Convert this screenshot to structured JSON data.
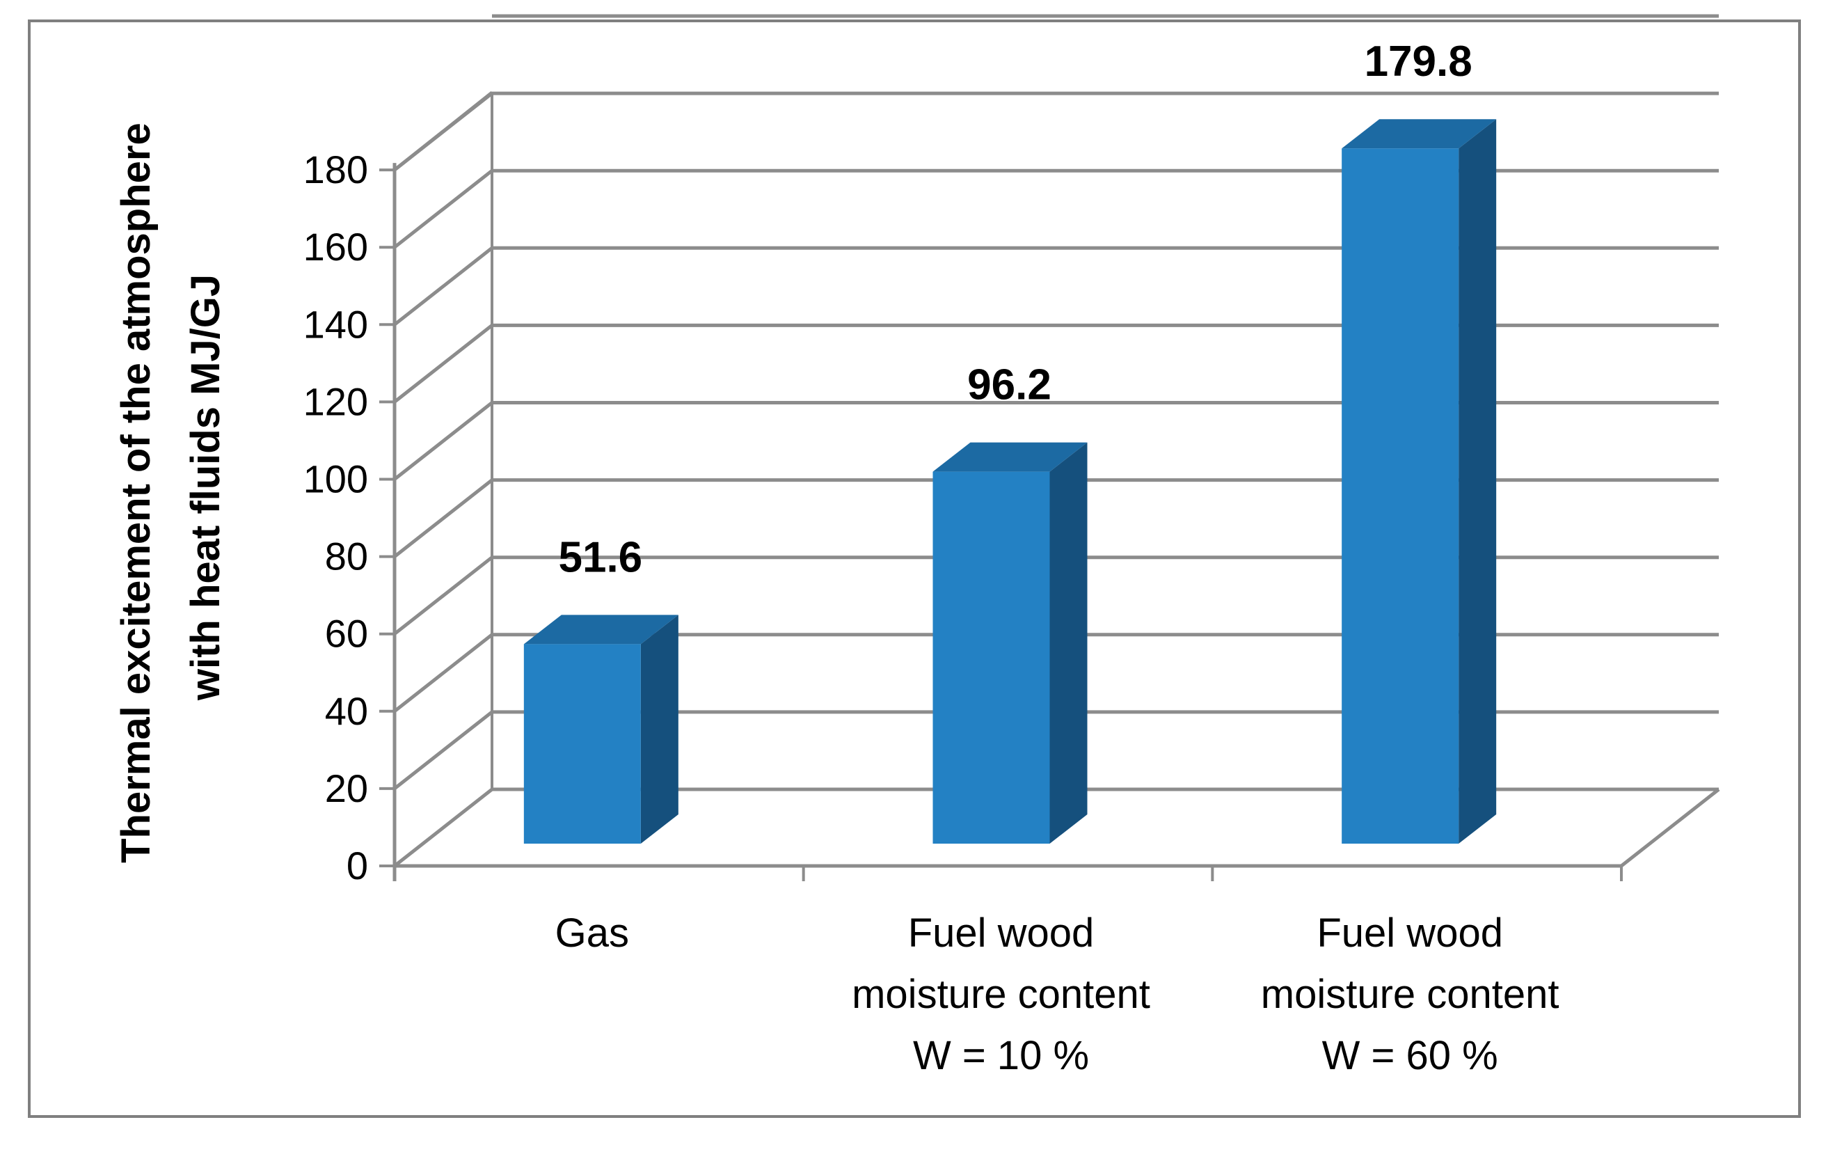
{
  "chart_data": {
    "type": "bar",
    "style": "3d-column",
    "categories": [
      [
        "Gas"
      ],
      [
        "Fuel wood",
        "moisture content",
        "W = 10 %"
      ],
      [
        "Fuel wood",
        "moisture content",
        "W = 60 %"
      ]
    ],
    "values": [
      51.6,
      96.2,
      179.8
    ],
    "data_labels": [
      "51.6",
      "96.2",
      "179.8"
    ],
    "ylabel": [
      "Thermal excitement of the atmosphere",
      "with heat fluids MJ/GJ"
    ],
    "xlabel": "",
    "ylim": [
      0,
      180
    ],
    "yticks": [
      0,
      20,
      40,
      60,
      80,
      100,
      120,
      140,
      160,
      180
    ],
    "grid": true,
    "legend": "none",
    "colors": {
      "bar_front": "#2381c4",
      "bar_side": "#15507d",
      "bar_top": "#1c6aa3",
      "grid": "#8c8c8c"
    }
  }
}
